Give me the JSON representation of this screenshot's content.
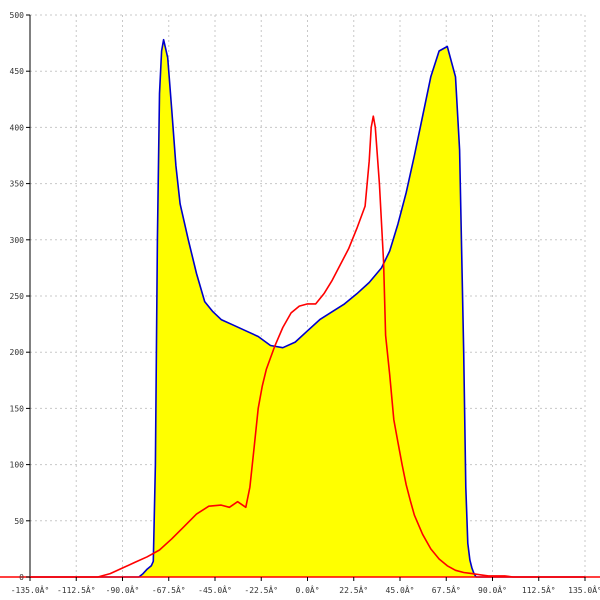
{
  "chart_data": {
    "type": "area",
    "title": "",
    "xlabel": "",
    "ylabel": "",
    "xlim": [
      -135,
      135
    ],
    "ylim": [
      0,
      500
    ],
    "grid": true,
    "x_ticks": [
      {
        "value": -135,
        "label": "-135.0Â°"
      },
      {
        "value": -112.5,
        "label": "-112.5Â°"
      },
      {
        "value": -90,
        "label": "-90.0Â°"
      },
      {
        "value": -67.5,
        "label": "-67.5Â°"
      },
      {
        "value": -45,
        "label": "-45.0Â°"
      },
      {
        "value": -22.5,
        "label": "-22.5Â°"
      },
      {
        "value": 0,
        "label": "0.0Â°"
      },
      {
        "value": 22.5,
        "label": "22.5Â°"
      },
      {
        "value": 45,
        "label": "45.0Â°"
      },
      {
        "value": 67.5,
        "label": "67.5Â°"
      },
      {
        "value": 90,
        "label": "90.0Â°"
      },
      {
        "value": 112.5,
        "label": "112.5Â°"
      },
      {
        "value": 135,
        "label": "135.0Â°"
      }
    ],
    "y_ticks": [
      {
        "value": 0,
        "label": "0"
      },
      {
        "value": 50,
        "label": "50"
      },
      {
        "value": 100,
        "label": "100"
      },
      {
        "value": 150,
        "label": "150"
      },
      {
        "value": 200,
        "label": "200"
      },
      {
        "value": 250,
        "label": "250"
      },
      {
        "value": 300,
        "label": "300"
      },
      {
        "value": 350,
        "label": "350"
      },
      {
        "value": 400,
        "label": "400"
      },
      {
        "value": 450,
        "label": "450"
      },
      {
        "value": 500,
        "label": "500"
      }
    ],
    "series": [
      {
        "color": "#0000cc",
        "fill": "#ffff00",
        "x": [
          -135,
          -82,
          -80,
          -78,
          -76,
          -75,
          -74,
          -73,
          -72,
          -71,
          -70,
          -68,
          -66,
          -64,
          -62,
          -58,
          -54,
          -50,
          -46,
          -42,
          -36,
          -30,
          -24,
          -18,
          -12,
          -6,
          0,
          6,
          12,
          18,
          24,
          30,
          36,
          40,
          44,
          48,
          52,
          56,
          60,
          64,
          68,
          72,
          74,
          76,
          77,
          78,
          79,
          80,
          81,
          82,
          135
        ],
        "y": [
          0,
          0,
          3,
          7,
          10,
          14,
          100,
          300,
          430,
          468,
          478,
          462,
          415,
          366,
          332,
          300,
          270,
          245,
          236,
          229,
          224,
          219,
          214,
          206,
          204,
          209,
          219,
          229,
          236,
          243,
          252,
          262,
          275,
          290,
          314,
          342,
          375,
          410,
          445,
          468,
          472,
          445,
          380,
          200,
          80,
          30,
          15,
          8,
          3,
          0,
          0
        ]
      },
      {
        "color": "#ff0000",
        "x": [
          -135,
          -102,
          -96,
          -90,
          -84,
          -78,
          -72,
          -66,
          -60,
          -54,
          -48,
          -42,
          -38,
          -34,
          -30,
          -28,
          -26,
          -24,
          -22,
          -20,
          -16,
          -12,
          -8,
          -4,
          0,
          4,
          8,
          12,
          16,
          20,
          24,
          28,
          30,
          31,
          32,
          33,
          35,
          37,
          38,
          40,
          42,
          44,
          46,
          48,
          50,
          52,
          56,
          60,
          64,
          68,
          72,
          76,
          80,
          84,
          88,
          92,
          96,
          100,
          135
        ],
        "y": [
          0,
          0,
          3,
          8,
          13,
          18,
          24,
          34,
          45,
          56,
          63,
          64,
          62,
          67,
          62,
          80,
          115,
          150,
          170,
          185,
          205,
          222,
          235,
          241,
          243,
          243,
          252,
          264,
          278,
          292,
          310,
          330,
          370,
          400,
          410,
          400,
          350,
          280,
          215,
          180,
          140,
          120,
          100,
          82,
          68,
          55,
          38,
          25,
          16,
          10,
          6,
          4,
          3,
          2,
          1,
          1,
          1,
          0,
          0
        ]
      }
    ]
  }
}
